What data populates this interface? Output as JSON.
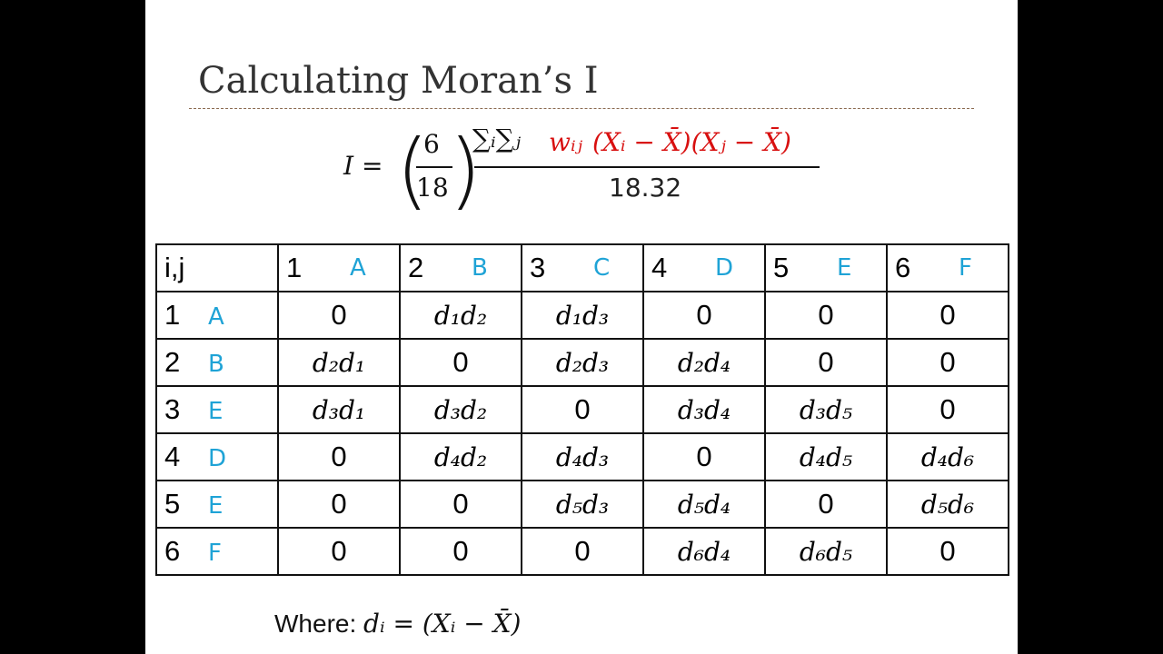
{
  "slide": {
    "title": "Calculating Moran’s I",
    "formula": {
      "lhs": "I =",
      "coef_num": "6",
      "coef_den": "18",
      "sums": "∑ᵢ∑ⱼ",
      "weight": "wᵢⱼ",
      "product": "(Xᵢ − X̄)(Xⱼ − X̄)",
      "denominator": "18.32"
    },
    "table": {
      "header": [
        "i,j",
        "1",
        "2",
        "3",
        "4",
        "5",
        "6"
      ],
      "column_notes": [
        "A",
        "B",
        "C",
        "D",
        "E",
        "F"
      ],
      "row_notes": [
        "A",
        "B",
        "E",
        "D",
        "E",
        "F"
      ],
      "rows": [
        [
          "1",
          "0",
          "d₁d₂",
          "d₁d₃",
          "0",
          "0",
          "0"
        ],
        [
          "2",
          "d₂d₁",
          "0",
          "d₂d₃",
          "d₂d₄",
          "0",
          "0"
        ],
        [
          "3",
          "d₃d₁",
          "d₃d₂",
          "0",
          "d₃d₄",
          "d₃d₅",
          "0"
        ],
        [
          "4",
          "0",
          "d₄d₂",
          "d₄d₃",
          "0",
          "d₄d₅",
          "d₄d₆"
        ],
        [
          "5",
          "0",
          "0",
          "d₅d₃",
          "d₅d₄",
          "0",
          "d₅d₆"
        ],
        [
          "6",
          "0",
          "0",
          "0",
          "d₆d₄",
          "d₆d₅",
          "0"
        ]
      ]
    },
    "footnote_label": "Where:",
    "footnote_math": "dᵢ = (Xᵢ − X̄)"
  }
}
